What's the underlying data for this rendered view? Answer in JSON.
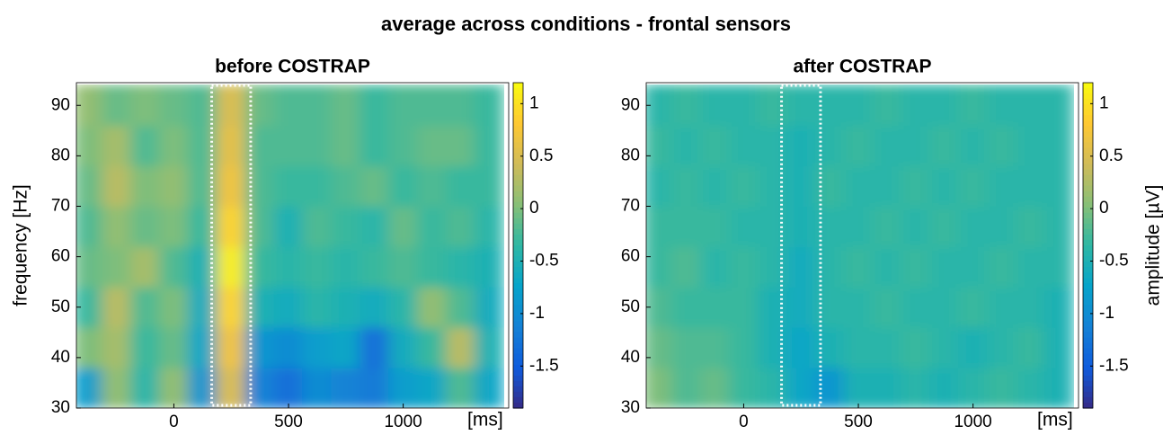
{
  "title": "average across conditions - frontal sensors",
  "chart_data": [
    {
      "type": "heatmap",
      "title": "before COSTRAP",
      "ylabel": "frequency [Hz]",
      "xlabel": "[ms]",
      "colormap": "parula",
      "clim": [
        -1.9,
        1.2
      ],
      "xlim": [
        -425,
        1460
      ],
      "ylim": [
        30,
        94.5
      ],
      "xticks": [
        0,
        500,
        1000
      ],
      "yticks": [
        30,
        40,
        50,
        60,
        70,
        80,
        90
      ],
      "cticks": [
        -1.5,
        -1,
        -0.5,
        0,
        0.5,
        1
      ],
      "highlight": [
        165,
        335
      ],
      "x": [
        -375,
        -250,
        -125,
        0,
        125,
        250,
        375,
        500,
        625,
        750,
        875,
        1000,
        1125,
        1250,
        1375
      ],
      "y": [
        34,
        42,
        50,
        58,
        66,
        74,
        82,
        90
      ],
      "z": [
        [
          -0.8,
          0.1,
          -0.4,
          0.1,
          -0.9,
          0.5,
          -1.1,
          -1.3,
          -1.0,
          -1.1,
          -1.2,
          -0.8,
          -0.7,
          -0.2,
          -0.7
        ],
        [
          0.0,
          0.2,
          -0.3,
          -0.1,
          -0.7,
          0.7,
          -0.9,
          -1.0,
          -0.8,
          -0.7,
          -1.3,
          -0.6,
          -0.3,
          0.3,
          -0.5
        ],
        [
          -0.3,
          0.3,
          -0.2,
          0.0,
          -0.6,
          0.9,
          -0.5,
          -0.6,
          -0.4,
          -0.5,
          -0.6,
          -0.4,
          0.1,
          -0.2,
          -0.6
        ],
        [
          -0.1,
          0.0,
          0.2,
          -0.2,
          -0.5,
          1.1,
          -0.3,
          -0.4,
          -0.3,
          -0.4,
          -0.3,
          -0.2,
          -0.3,
          -0.4,
          -0.5
        ],
        [
          -0.2,
          0.1,
          -0.1,
          0.0,
          -0.3,
          0.9,
          -0.2,
          -0.5,
          -0.2,
          -0.3,
          -0.4,
          -0.1,
          -0.3,
          -0.2,
          -0.4
        ],
        [
          -0.1,
          0.3,
          0.0,
          0.1,
          -0.2,
          0.7,
          -0.2,
          -0.3,
          -0.3,
          -0.2,
          -0.1,
          -0.3,
          -0.2,
          -0.3,
          -0.3
        ],
        [
          0.0,
          0.2,
          -0.2,
          0.0,
          -0.2,
          0.6,
          -0.2,
          -0.2,
          -0.2,
          -0.1,
          -0.3,
          -0.2,
          -0.1,
          -0.1,
          -0.3
        ],
        [
          0.1,
          -0.1,
          0.0,
          -0.1,
          -0.2,
          0.5,
          -0.1,
          -0.2,
          -0.2,
          -0.1,
          -0.3,
          -0.2,
          -0.2,
          -0.2,
          -0.3
        ]
      ]
    },
    {
      "type": "heatmap",
      "title": "after COSTRAP",
      "xlabel": "[ms]",
      "clabel": "amplitude [µV]",
      "colormap": "parula",
      "clim": [
        -1.9,
        1.2
      ],
      "xlim": [
        -425,
        1460
      ],
      "ylim": [
        30,
        94.5
      ],
      "xticks": [
        0,
        500,
        1000
      ],
      "yticks": [
        30,
        40,
        50,
        60,
        70,
        80,
        90
      ],
      "cticks": [
        -1.5,
        -1,
        -0.5,
        0,
        0.5,
        1
      ],
      "highlight": [
        165,
        335
      ],
      "x": [
        -375,
        -250,
        -125,
        0,
        125,
        250,
        375,
        500,
        625,
        750,
        875,
        1000,
        1125,
        1250,
        1375
      ],
      "y": [
        34,
        42,
        50,
        58,
        66,
        74,
        82,
        90
      ],
      "z": [
        [
          0.0,
          -0.2,
          -0.1,
          -0.3,
          -0.4,
          -0.7,
          -0.9,
          -0.5,
          -0.5,
          -0.4,
          -0.5,
          -0.4,
          -0.3,
          -0.4,
          -0.5
        ],
        [
          -0.1,
          -0.2,
          -0.2,
          -0.3,
          -0.5,
          -0.7,
          -0.5,
          -0.4,
          -0.4,
          -0.3,
          -0.4,
          -0.5,
          -0.4,
          -0.3,
          -0.5
        ],
        [
          -0.2,
          -0.3,
          -0.3,
          -0.3,
          -0.5,
          -0.6,
          -0.4,
          -0.4,
          -0.3,
          -0.4,
          -0.4,
          -0.3,
          -0.4,
          -0.4,
          -0.5
        ],
        [
          -0.3,
          -0.2,
          -0.4,
          -0.3,
          -0.4,
          -0.6,
          -0.4,
          -0.3,
          -0.4,
          -0.3,
          -0.4,
          -0.4,
          -0.3,
          -0.4,
          -0.4
        ],
        [
          -0.3,
          -0.3,
          -0.3,
          -0.4,
          -0.4,
          -0.5,
          -0.4,
          -0.4,
          -0.3,
          -0.4,
          -0.3,
          -0.4,
          -0.4,
          -0.3,
          -0.4
        ],
        [
          -0.4,
          -0.3,
          -0.4,
          -0.3,
          -0.4,
          -0.5,
          -0.3,
          -0.4,
          -0.4,
          -0.3,
          -0.4,
          -0.3,
          -0.4,
          -0.4,
          -0.4
        ],
        [
          -0.3,
          -0.4,
          -0.3,
          -0.4,
          -0.4,
          -0.5,
          -0.4,
          -0.3,
          -0.4,
          -0.4,
          -0.3,
          -0.4,
          -0.3,
          -0.4,
          -0.4
        ],
        [
          -0.4,
          -0.3,
          -0.4,
          -0.4,
          -0.3,
          -0.4,
          -0.4,
          -0.4,
          -0.3,
          -0.4,
          -0.4,
          -0.3,
          -0.4,
          -0.4,
          -0.4
        ]
      ]
    }
  ]
}
